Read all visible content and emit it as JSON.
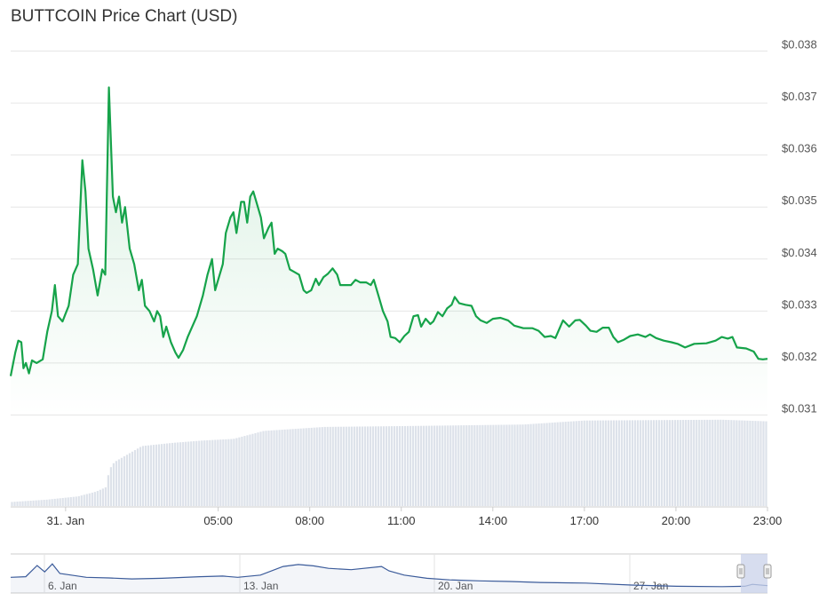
{
  "title": "BUTTCOIN Price Chart (USD)",
  "colors": {
    "price_line": "#16a34a",
    "area_top": "#16a34a",
    "volume_bar": "#dde2ea",
    "gridline": "#e6e6e6",
    "navigator_line": "#3b5b9a",
    "navigator_mask": "#c9d1ea"
  },
  "chart_data": {
    "type": "line",
    "title": "BUTTCOIN Price Chart (USD)",
    "ylim": [
      0.031,
      0.038
    ],
    "y_ticks": [
      "$0.038",
      "$0.037",
      "$0.036",
      "$0.035",
      "$0.034",
      "$0.033",
      "$0.032",
      "$0.031"
    ],
    "y_tick_values": [
      0.038,
      0.037,
      0.036,
      0.035,
      0.034,
      0.033,
      0.032,
      0.031
    ],
    "x_range_hours": [
      -1.8,
      23.0
    ],
    "x_ticks": [
      {
        "label": "31. Jan",
        "hour": 0.0
      },
      {
        "label": "05:00",
        "hour": 5.0
      },
      {
        "label": "08:00",
        "hour": 8.0
      },
      {
        "label": "11:00",
        "hour": 11.0
      },
      {
        "label": "14:00",
        "hour": 14.0
      },
      {
        "label": "17:00",
        "hour": 17.0
      },
      {
        "label": "20:00",
        "hour": 20.0
      },
      {
        "label": "23:00",
        "hour": 23.0
      }
    ],
    "series": [
      {
        "price": [
          [
            -1.8,
            0.03175
          ],
          [
            -1.65,
            0.0322
          ],
          [
            -1.55,
            0.03243
          ],
          [
            -1.45,
            0.0324
          ],
          [
            -1.38,
            0.0319
          ],
          [
            -1.3,
            0.032
          ],
          [
            -1.2,
            0.0318
          ],
          [
            -1.1,
            0.03205
          ],
          [
            -0.95,
            0.032
          ],
          [
            -0.75,
            0.03207
          ],
          [
            -0.6,
            0.0326
          ],
          [
            -0.45,
            0.033
          ],
          [
            -0.35,
            0.0335
          ],
          [
            -0.25,
            0.0329
          ],
          [
            -0.1,
            0.0328
          ],
          [
            0.0,
            0.03295
          ],
          [
            0.1,
            0.0331
          ],
          [
            0.25,
            0.0337
          ],
          [
            0.4,
            0.0339
          ],
          [
            0.55,
            0.0359
          ],
          [
            0.65,
            0.0353
          ],
          [
            0.75,
            0.0342
          ],
          [
            0.9,
            0.0338
          ],
          [
            1.05,
            0.0333
          ],
          [
            1.2,
            0.0338
          ],
          [
            1.3,
            0.0337
          ],
          [
            1.42,
            0.0373
          ],
          [
            1.55,
            0.0352
          ],
          [
            1.65,
            0.0349
          ],
          [
            1.75,
            0.0352
          ],
          [
            1.85,
            0.0347
          ],
          [
            1.95,
            0.035
          ],
          [
            2.1,
            0.0342
          ],
          [
            2.25,
            0.0339
          ],
          [
            2.4,
            0.0334
          ],
          [
            2.5,
            0.0336
          ],
          [
            2.6,
            0.0331
          ],
          [
            2.75,
            0.033
          ],
          [
            2.9,
            0.0328
          ],
          [
            3.0,
            0.033
          ],
          [
            3.1,
            0.0329
          ],
          [
            3.2,
            0.0325
          ],
          [
            3.3,
            0.0327
          ],
          [
            3.45,
            0.0324
          ],
          [
            3.6,
            0.0322
          ],
          [
            3.7,
            0.0321
          ],
          [
            3.85,
            0.03225
          ],
          [
            4.0,
            0.0325
          ],
          [
            4.15,
            0.0327
          ],
          [
            4.3,
            0.0329
          ],
          [
            4.5,
            0.0333
          ],
          [
            4.65,
            0.0337
          ],
          [
            4.8,
            0.034
          ],
          [
            4.9,
            0.0334
          ],
          [
            5.0,
            0.0336
          ],
          [
            5.15,
            0.0339
          ],
          [
            5.25,
            0.0345
          ],
          [
            5.4,
            0.0348
          ],
          [
            5.5,
            0.0349
          ],
          [
            5.6,
            0.0345
          ],
          [
            5.75,
            0.0351
          ],
          [
            5.85,
            0.0351
          ],
          [
            5.95,
            0.0347
          ],
          [
            6.05,
            0.0352
          ],
          [
            6.15,
            0.0353
          ],
          [
            6.25,
            0.0351
          ],
          [
            6.4,
            0.0348
          ],
          [
            6.5,
            0.0344
          ],
          [
            6.65,
            0.0346
          ],
          [
            6.75,
            0.0347
          ],
          [
            6.85,
            0.0341
          ],
          [
            6.95,
            0.0342
          ],
          [
            7.1,
            0.03415
          ],
          [
            7.2,
            0.0341
          ],
          [
            7.35,
            0.0338
          ],
          [
            7.5,
            0.03375
          ],
          [
            7.65,
            0.0337
          ],
          [
            7.8,
            0.0334
          ],
          [
            7.9,
            0.03335
          ],
          [
            8.05,
            0.0334
          ],
          [
            8.2,
            0.03362
          ],
          [
            8.3,
            0.0335
          ],
          [
            8.45,
            0.03365
          ],
          [
            8.6,
            0.03372
          ],
          [
            8.75,
            0.03382
          ],
          [
            8.9,
            0.0337
          ],
          [
            9.0,
            0.0335
          ],
          [
            9.15,
            0.0335
          ],
          [
            9.35,
            0.0335
          ],
          [
            9.5,
            0.0336
          ],
          [
            9.65,
            0.03355
          ],
          [
            9.85,
            0.03355
          ],
          [
            10.0,
            0.0335
          ],
          [
            10.1,
            0.0336
          ],
          [
            10.25,
            0.0333
          ],
          [
            10.4,
            0.033
          ],
          [
            10.55,
            0.0328
          ],
          [
            10.65,
            0.0325
          ],
          [
            10.8,
            0.03248
          ],
          [
            10.95,
            0.0324
          ],
          [
            11.1,
            0.03252
          ],
          [
            11.25,
            0.0326
          ],
          [
            11.4,
            0.0329
          ],
          [
            11.55,
            0.03292
          ],
          [
            11.65,
            0.0327
          ],
          [
            11.8,
            0.03285
          ],
          [
            11.95,
            0.03275
          ],
          [
            12.05,
            0.0328
          ],
          [
            12.2,
            0.03298
          ],
          [
            12.35,
            0.0329
          ],
          [
            12.5,
            0.03305
          ],
          [
            12.65,
            0.03312
          ],
          [
            12.75,
            0.03327
          ],
          [
            12.9,
            0.03315
          ],
          [
            13.1,
            0.03312
          ],
          [
            13.3,
            0.0331
          ],
          [
            13.45,
            0.0329
          ],
          [
            13.6,
            0.03282
          ],
          [
            13.8,
            0.03277
          ],
          [
            14.0,
            0.03285
          ],
          [
            14.25,
            0.03287
          ],
          [
            14.5,
            0.03282
          ],
          [
            14.7,
            0.03272
          ],
          [
            15.0,
            0.03267
          ],
          [
            15.3,
            0.03267
          ],
          [
            15.5,
            0.03262
          ],
          [
            15.7,
            0.0325
          ],
          [
            15.9,
            0.03252
          ],
          [
            16.05,
            0.03248
          ],
          [
            16.3,
            0.03282
          ],
          [
            16.5,
            0.0327
          ],
          [
            16.7,
            0.03282
          ],
          [
            16.85,
            0.03283
          ],
          [
            17.05,
            0.03272
          ],
          [
            17.2,
            0.03262
          ],
          [
            17.4,
            0.0326
          ],
          [
            17.6,
            0.03268
          ],
          [
            17.8,
            0.03268
          ],
          [
            17.95,
            0.0325
          ],
          [
            18.1,
            0.0324
          ],
          [
            18.3,
            0.03245
          ],
          [
            18.5,
            0.03252
          ],
          [
            18.75,
            0.03255
          ],
          [
            19.0,
            0.0325
          ],
          [
            19.15,
            0.03255
          ],
          [
            19.35,
            0.03248
          ],
          [
            19.6,
            0.03243
          ],
          [
            19.85,
            0.0324
          ],
          [
            20.05,
            0.03237
          ],
          [
            20.3,
            0.0323
          ],
          [
            20.6,
            0.03237
          ],
          [
            21.0,
            0.03238
          ],
          [
            21.3,
            0.03243
          ],
          [
            21.5,
            0.0325
          ],
          [
            21.7,
            0.03247
          ],
          [
            21.85,
            0.0325
          ],
          [
            22.0,
            0.0323
          ],
          [
            22.3,
            0.03228
          ],
          [
            22.55,
            0.03222
          ],
          [
            22.7,
            0.03208
          ],
          [
            22.85,
            0.03207
          ],
          [
            23.0,
            0.03208
          ]
        ]
      },
      {
        "volume_relative": [
          [
            -1.8,
            0.05
          ],
          [
            -0.6,
            0.08
          ],
          [
            0.4,
            0.12
          ],
          [
            1.0,
            0.18
          ],
          [
            1.35,
            0.24
          ],
          [
            1.42,
            0.45
          ],
          [
            1.6,
            0.55
          ],
          [
            2.5,
            0.75
          ],
          [
            3.5,
            0.79
          ],
          [
            4.5,
            0.82
          ],
          [
            5.5,
            0.84
          ],
          [
            6.5,
            0.94
          ],
          [
            8.5,
            0.99
          ],
          [
            11.0,
            1.0
          ],
          [
            15.0,
            1.02
          ],
          [
            17.0,
            1.07
          ],
          [
            21.5,
            1.08
          ],
          [
            23.0,
            1.06
          ]
        ]
      }
    ],
    "navigator": {
      "labels": [
        "6. Jan",
        "13. Jan",
        "20. Jan",
        "27. Jan"
      ],
      "values": [
        [
          0,
          0.38
        ],
        [
          0.02,
          0.4
        ],
        [
          0.035,
          0.75
        ],
        [
          0.045,
          0.55
        ],
        [
          0.055,
          0.8
        ],
        [
          0.065,
          0.5
        ],
        [
          0.08,
          0.45
        ],
        [
          0.1,
          0.38
        ],
        [
          0.13,
          0.36
        ],
        [
          0.16,
          0.33
        ],
        [
          0.2,
          0.35
        ],
        [
          0.25,
          0.4
        ],
        [
          0.28,
          0.42
        ],
        [
          0.3,
          0.38
        ],
        [
          0.33,
          0.45
        ],
        [
          0.36,
          0.72
        ],
        [
          0.38,
          0.78
        ],
        [
          0.4,
          0.74
        ],
        [
          0.42,
          0.66
        ],
        [
          0.45,
          0.62
        ],
        [
          0.49,
          0.72
        ],
        [
          0.5,
          0.58
        ],
        [
          0.52,
          0.45
        ],
        [
          0.55,
          0.35
        ],
        [
          0.58,
          0.3
        ],
        [
          0.62,
          0.27
        ],
        [
          0.66,
          0.25
        ],
        [
          0.7,
          0.22
        ],
        [
          0.76,
          0.2
        ],
        [
          0.82,
          0.14
        ],
        [
          0.88,
          0.1
        ],
        [
          0.94,
          0.09
        ],
        [
          0.97,
          0.1
        ],
        [
          0.98,
          0.16
        ],
        [
          1.0,
          0.12
        ]
      ]
    }
  }
}
